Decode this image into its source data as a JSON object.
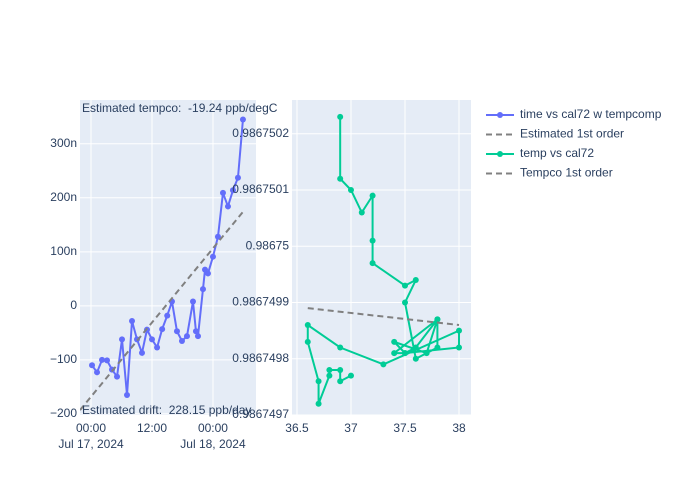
{
  "chart_data": [
    {
      "type": "line",
      "annotations": [
        "Estimated tempco:  -19.24 ppb/degC",
        "Estimated drift:  228.15 ppb/day"
      ],
      "xlim": [
        "2024-07-16 21:50",
        "2024-07-18 08:28"
      ],
      "xticks": [
        {
          "value": "2024-07-17 00:00",
          "label": "00:00",
          "sublabel": "Jul 17, 2024"
        },
        {
          "value": "2024-07-17 12:00",
          "label": "12:00"
        },
        {
          "value": "2024-07-18 00:00",
          "label": "00:00",
          "sublabel": "Jul 18, 2024"
        }
      ],
      "ylim": [
        -202,
        381
      ],
      "yticks": [
        {
          "value": -200,
          "label": "−200"
        },
        {
          "value": -100,
          "label": "−100"
        },
        0,
        {
          "value": 100,
          "label": "100n"
        },
        {
          "value": 200,
          "label": "200n"
        },
        {
          "value": 300,
          "label": "300n"
        }
      ],
      "grid": true,
      "series": [
        {
          "name": "time vs cal72 w tempcomp",
          "color": "#636efa",
          "markers": true,
          "x": [
            "2024-07-17 00:12",
            "2024-07-17 01:11",
            "2024-07-17 02:10",
            "2024-07-17 03:09",
            "2024-07-17 04:08",
            "2024-07-17 05:07",
            "2024-07-17 06:06",
            "2024-07-17 07:05",
            "2024-07-17 08:04",
            "2024-07-17 09:03",
            "2024-07-17 10:02",
            "2024-07-17 11:01",
            "2024-07-17 12:00",
            "2024-07-17 13:00",
            "2024-07-17 14:00",
            "2024-07-17 15:00",
            "2024-07-17 15:56",
            "2024-07-17 16:55",
            "2024-07-17 17:54",
            "2024-07-17 18:53",
            "2024-07-17 20:04",
            "2024-07-17 20:39",
            "2024-07-17 21:03",
            "2024-07-17 22:02",
            "2024-07-17 22:26",
            "2024-07-17 23:01",
            "2024-07-18 00:00",
            "2024-07-18 00:59",
            "2024-07-18 01:58",
            "2024-07-18 02:57",
            "2024-07-18 03:56",
            "2024-07-18 04:55",
            "2024-07-18 05:54"
          ],
          "values": [
            -110,
            -123,
            -100,
            -101,
            -118,
            -131,
            -62,
            -165,
            -28,
            -62,
            -87,
            -44,
            -62,
            -77,
            -43,
            -18,
            8,
            -47,
            -65,
            -56,
            8,
            -47,
            -56,
            31,
            67,
            60,
            91,
            128,
            209,
            184,
            214,
            237,
            345
          ]
        },
        {
          "name": "Estimated 1st order",
          "color": "gray",
          "dash": true,
          "markers": false,
          "x": [
            "2024-07-16 21:50",
            "2024-07-18 05:54"
          ],
          "values": [
            -193,
            174
          ]
        }
      ]
    },
    {
      "type": "line",
      "xlim": [
        36.454,
        38.111
      ],
      "xticks": [
        36.5,
        37,
        37.5,
        38
      ],
      "ylim": [
        0.9867497,
        0.98675026
      ],
      "yticks": [
        0.9867497,
        0.9867498,
        0.9867499,
        0.98675,
        0.9867501,
        0.9867502
      ],
      "grid": true,
      "series": [
        {
          "name": "temp vs cal72",
          "color": "#00cc96",
          "markers": true,
          "x": [
            36.9,
            36.9,
            37.0,
            37.1,
            37.2,
            37.2,
            37.2,
            37.5,
            37.6,
            37.5,
            37.6,
            37.8,
            37.8,
            37.4,
            37.5,
            37.6,
            37.8,
            37.7,
            37.4,
            37.5,
            38.0,
            38.0,
            37.3,
            36.9,
            36.6,
            36.6,
            36.7,
            36.7,
            36.8,
            36.8,
            36.9,
            36.9,
            37.0
          ],
          "values": [
            0.98675023,
            0.98675012,
            0.9867501,
            0.98675006,
            0.98675009,
            0.98675001,
            0.98674997,
            0.98674993,
            0.98674994,
            0.9867499,
            0.9867498,
            0.98674982,
            0.98674987,
            0.98674981,
            0.98674981,
            0.98674982,
            0.98674987,
            0.98674981,
            0.98674983,
            0.98674981,
            0.98674982,
            0.98674985,
            0.98674979,
            0.98674982,
            0.98674986,
            0.98674983,
            0.98674976,
            0.98674972,
            0.98674977,
            0.98674978,
            0.98674978,
            0.98674976,
            0.98674977
          ]
        },
        {
          "name": "Tempco 1st order",
          "color": "gray",
          "dash": true,
          "markers": false,
          "x": [
            36.6,
            38.0
          ],
          "values": [
            0.98674989,
            0.98674986
          ]
        }
      ]
    }
  ]
}
